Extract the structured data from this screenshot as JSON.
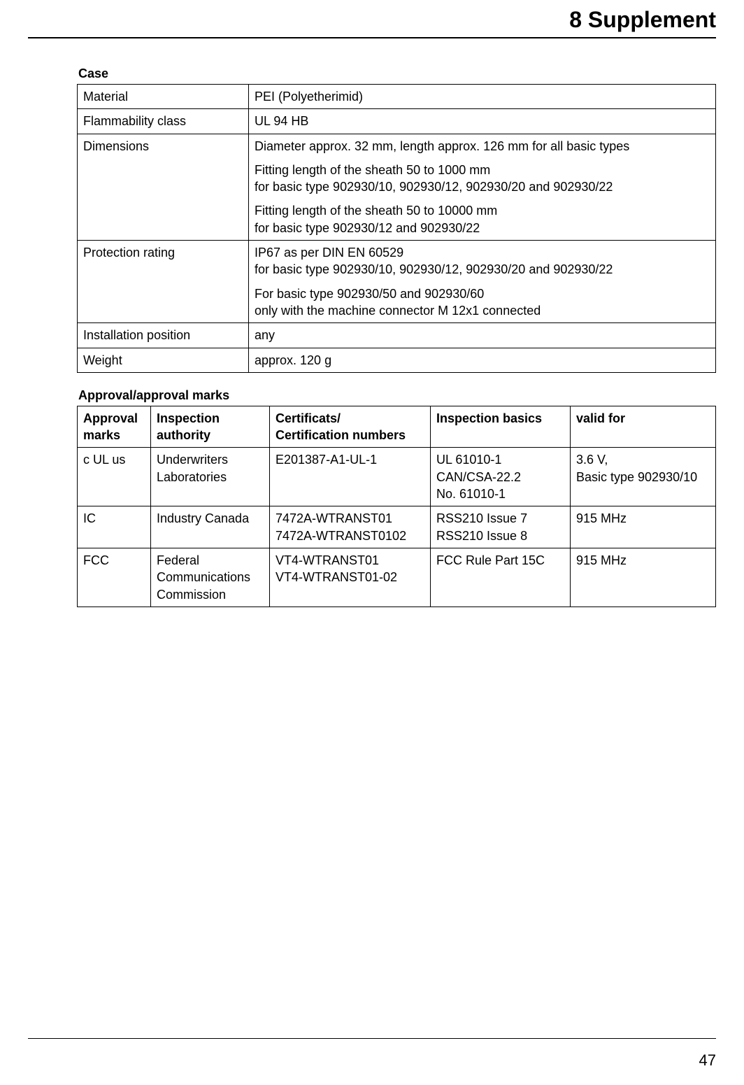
{
  "header": {
    "title": "8 Supplement"
  },
  "case": {
    "heading": "Case",
    "rows": [
      {
        "label": "Material",
        "value_paras": [
          "PEI (Polyetherimid)"
        ]
      },
      {
        "label": "Flammability class",
        "value_paras": [
          "UL 94 HB"
        ]
      },
      {
        "label": "Dimensions",
        "value_paras": [
          "Diameter approx. 32 mm, length approx. 126 mm for all basic types",
          "Fitting length of the sheath 50 to 1000 mm\nfor basic type 902930/10, 902930/12, 902930/20 and 902930/22",
          "Fitting length of the sheath 50 to 10000 mm\nfor basic type 902930/12 and 902930/22"
        ]
      },
      {
        "label": "Protection rating",
        "value_paras": [
          "IP67 as per DIN EN 60529\nfor basic type 902930/10, 902930/12, 902930/20 and 902930/22",
          "For basic type 902930/50 and 902930/60\nonly with the machine connector M 12x1 connected"
        ]
      },
      {
        "label": "Installation position",
        "value_paras": [
          "any"
        ]
      },
      {
        "label": "Weight",
        "value_paras": [
          "approx. 120 g"
        ]
      }
    ]
  },
  "approval": {
    "heading": "Approval/approval marks",
    "headers": [
      "Approval marks",
      "Inspection authority",
      "Certificats/\nCertification numbers",
      "Inspection basics",
      "valid for"
    ],
    "rows": [
      {
        "mark": "c UL us",
        "authority": "Underwriters Laboratories",
        "certs": "E201387-A1-UL-1",
        "basics": "UL 61010-1\nCAN/CSA-22.2\nNo. 61010-1",
        "valid": "3.6 V,\nBasic type 902930/10"
      },
      {
        "mark": "IC",
        "authority": "Industry Canada",
        "certs": "7472A-WTRANST01\n7472A-WTRANST0102",
        "basics": "RSS210 Issue 7\nRSS210 Issue 8",
        "valid": "915 MHz"
      },
      {
        "mark": "FCC",
        "authority": "Federal Communications Commission",
        "certs": "VT4-WTRANST01\nVT4-WTRANST01-02",
        "basics": "FCC Rule Part 15C",
        "valid": "915 MHz"
      }
    ]
  },
  "page_number": "47"
}
